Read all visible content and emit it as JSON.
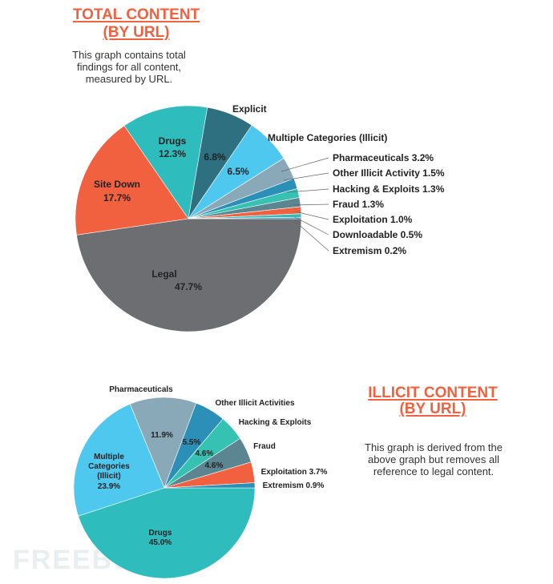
{
  "top": {
    "title_line1": "TOTAL CONTENT",
    "title_line2": "(BY URL)",
    "description": "This graph contains total findings for all content, measured by URL."
  },
  "bottom": {
    "title_line1": "ILLICIT CONTENT",
    "title_line2": "(BY URL)",
    "description": "This graph is derived from the above graph but removes all reference to legal content."
  },
  "watermark": "FREEBUF",
  "chart_data": [
    {
      "type": "pie",
      "title": "TOTAL CONTENT (BY URL)",
      "slices": [
        {
          "name": "Legal",
          "value": 47.7,
          "label": "47.7%",
          "color": "#6d6e71"
        },
        {
          "name": "Site Down",
          "value": 17.7,
          "label": "17.7%",
          "color": "#f2613f"
        },
        {
          "name": "Drugs",
          "value": 12.3,
          "label": "12.3%",
          "color": "#2fbcbc"
        },
        {
          "name": "Explicit",
          "value": 6.8,
          "label": "6.8%",
          "color": "#2e6f80"
        },
        {
          "name": "Multiple Categories (Illicit)",
          "value": 6.5,
          "label": "6.5%",
          "color": "#4fc8ef"
        },
        {
          "name": "Pharmaceuticals",
          "value": 3.2,
          "label": "3.2%",
          "color": "#8aa9b8"
        },
        {
          "name": "Other Illicit Activity",
          "value": 1.5,
          "label": "1.5%",
          "color": "#2b8fb8"
        },
        {
          "name": "Hacking & Exploits",
          "value": 1.3,
          "label": "1.3%",
          "color": "#35c2b3"
        },
        {
          "name": "Fraud",
          "value": 1.3,
          "label": "1.3%",
          "color": "#5a8591"
        },
        {
          "name": "Exploitation",
          "value": 1.0,
          "label": "1.0%",
          "color": "#f2613f"
        },
        {
          "name": "Downloadable",
          "value": 0.5,
          "label": "0.5%",
          "color": "#2fbcbc"
        },
        {
          "name": "Extremism",
          "value": 0.2,
          "label": "0.2%",
          "color": "#2b8fb8"
        }
      ]
    },
    {
      "type": "pie",
      "title": "ILLICIT CONTENT (BY URL)",
      "slices": [
        {
          "name": "Drugs",
          "value": 45.0,
          "label": "45.0%",
          "color": "#2fbcbc"
        },
        {
          "name": "Multiple Categories (Illicit)",
          "value": 23.9,
          "label": "23.9%",
          "color": "#4fc8ef"
        },
        {
          "name": "Pharmaceuticals",
          "value": 11.9,
          "label": "11.9%",
          "color": "#8aa9b8"
        },
        {
          "name": "Other Illicit Activities",
          "value": 5.5,
          "label": "5.5%",
          "color": "#2b8fb8"
        },
        {
          "name": "Hacking & Exploits",
          "value": 4.6,
          "label": "4.6%",
          "color": "#35c2b3"
        },
        {
          "name": "Fraud",
          "value": 4.6,
          "label": "4.6%",
          "color": "#5a8591"
        },
        {
          "name": "Exploitation",
          "value": 3.7,
          "label": "3.7%",
          "color": "#f2613f"
        },
        {
          "name": "Extremism",
          "value": 0.9,
          "label": "0.9%",
          "color": "#2b8fb8"
        }
      ]
    }
  ]
}
